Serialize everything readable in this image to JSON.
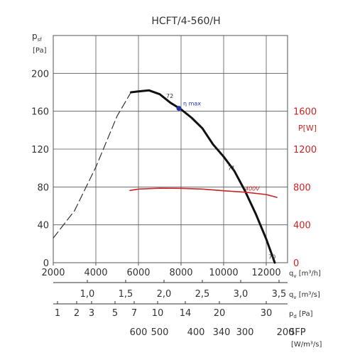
{
  "chart_data": {
    "type": "line",
    "title": "HCFT/4-560/H",
    "y_left": {
      "label_main": "p",
      "label_sub": "sf",
      "unit": "[Pa]",
      "range": [
        0,
        200
      ],
      "ticks": [
        0,
        40,
        80,
        120,
        160,
        200
      ]
    },
    "y_right": {
      "label": "P[W]",
      "range": [
        0,
        2000
      ],
      "ticks": [
        0,
        400,
        800,
        1200,
        1600
      ],
      "color": "#cc2222"
    },
    "x": {
      "range": [
        2000,
        13000
      ],
      "ticks": [
        2000,
        4000,
        6000,
        8000,
        10000,
        12000
      ]
    },
    "scales": [
      {
        "label": "q",
        "sub": "v",
        "unit": "[m³/h]",
        "ticks": [
          "2000",
          "4000",
          "6000",
          "8000",
          "10000",
          "12000"
        ]
      },
      {
        "label": "q",
        "sub": "v",
        "unit": "[m³/s]",
        "ticks": [
          {
            "text": "1,0",
            "x": 3600
          },
          {
            "text": "1,5",
            "x": 5400
          },
          {
            "text": "2,0",
            "x": 7200
          },
          {
            "text": "2,5",
            "x": 9000
          },
          {
            "text": "3,0",
            "x": 10800
          },
          {
            "text": "3,5",
            "x": 12600
          }
        ]
      },
      {
        "label": "p",
        "sub": "d",
        "unit": "[Pa]",
        "ticks": [
          {
            "text": "1",
            "x": 2200
          },
          {
            "text": "2",
            "x": 3100
          },
          {
            "text": "3",
            "x": 3800
          },
          {
            "text": "5",
            "x": 4900
          },
          {
            "text": "7",
            "x": 5800
          },
          {
            "text": "10",
            "x": 6900
          },
          {
            "text": "14",
            "x": 8200
          },
          {
            "text": "20",
            "x": 9800
          },
          {
            "text": "30",
            "x": 12000
          }
        ]
      },
      {
        "label": "SFP",
        "unit": "[W/m³/s]",
        "ticks": [
          {
            "text": "600",
            "x": 6000
          },
          {
            "text": "500",
            "x": 7000
          },
          {
            "text": "400",
            "x": 8700
          },
          {
            "text": "340",
            "x": 9900
          },
          {
            "text": "300",
            "x": 11000
          },
          {
            "text": "200",
            "x": 12900
          }
        ]
      }
    ],
    "series": [
      {
        "style": "dashed",
        "color": "#333333",
        "points": [
          [
            2000,
            26
          ],
          [
            3000,
            55
          ],
          [
            4000,
            101
          ],
          [
            5000,
            155
          ],
          [
            5650,
            180
          ]
        ]
      },
      {
        "style": "solid",
        "color": "#111111",
        "points": [
          [
            5650,
            180
          ],
          [
            6000,
            181
          ],
          [
            6500,
            182
          ],
          [
            7000,
            178
          ],
          [
            7500,
            169
          ],
          [
            8000,
            162
          ],
          [
            8500,
            153
          ],
          [
            9000,
            142
          ],
          [
            9500,
            125
          ],
          [
            10000,
            112
          ],
          [
            10500,
            97
          ],
          [
            11000,
            76
          ],
          [
            11500,
            52
          ],
          [
            12000,
            25
          ],
          [
            12400,
            0
          ]
        ]
      },
      {
        "style": "solid",
        "color": "#cc2222",
        "axis": "right",
        "points": [
          [
            5600,
            763
          ],
          [
            6000,
            778
          ],
          [
            7000,
            787
          ],
          [
            8000,
            785
          ],
          [
            9000,
            778
          ],
          [
            10000,
            760
          ],
          [
            11000,
            745
          ],
          [
            12000,
            720
          ],
          [
            12500,
            690
          ]
        ]
      }
    ],
    "annotations": [
      {
        "text": "72",
        "x": 7300,
        "y": 174
      },
      {
        "text": "71",
        "x": 10200,
        "y": 98
      },
      {
        "text": "70",
        "x": 12100,
        "y": 4
      },
      {
        "text": "400V",
        "x": 11000,
        "y": 76,
        "color": "#cc2222"
      }
    ],
    "eta_max": {
      "label": "η max",
      "x": 7900,
      "y": 163,
      "color": "#2233aa"
    },
    "grid": true
  }
}
